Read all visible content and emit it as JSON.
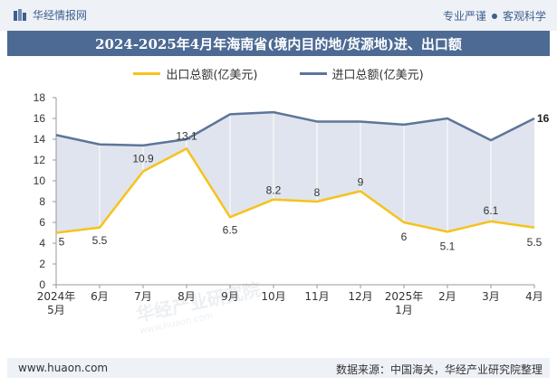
{
  "header": {
    "brand": "华经情报网",
    "slogan_left": "专业严谨",
    "slogan_right": "客观科学"
  },
  "title": "2024-2025年4月年海南省(境内目的地/货源地)进、出口额",
  "legend": [
    {
      "label": "出口总额(亿美元)",
      "color": "#f7c21b"
    },
    {
      "label": "进口总额(亿美元)",
      "color": "#5d7599"
    }
  ],
  "watermark": {
    "text": "华经产业研究院",
    "url": "www.huaon.com"
  },
  "footer": {
    "website": "www.huaon.com",
    "source": "数据来源：中国海关，华经产业研究院整理"
  },
  "chart_data": {
    "type": "line",
    "categories": [
      "2024年\n5月",
      "6月",
      "7月",
      "8月",
      "9月",
      "10月",
      "11月",
      "12月",
      "2025年\n1月",
      "2月",
      "3月",
      "4月"
    ],
    "series": [
      {
        "name": "出口总额(亿美元)",
        "color": "#f7c21b",
        "values": [
          5,
          5.5,
          10.9,
          13.1,
          6.5,
          8.2,
          8,
          9,
          6,
          5.1,
          6.1,
          5.5
        ],
        "labels": [
          "5",
          "5.5",
          "10.9",
          "13.1",
          "6.5",
          "8.2",
          "8",
          "9",
          "6",
          "5.1",
          "6.1",
          "5.5"
        ]
      },
      {
        "name": "进口总额(亿美元)",
        "color": "#5d7599",
        "values": [
          14.4,
          13.5,
          13.4,
          14.0,
          16.4,
          16.6,
          15.7,
          15.7,
          15.4,
          16.0,
          13.9,
          16
        ],
        "labels": [
          "",
          "",
          "",
          "",
          "",
          "",
          "",
          "",
          "",
          "",
          "",
          "16"
        ]
      }
    ],
    "yticks": [
      "0",
      "2",
      "4",
      "6",
      "8",
      "10",
      "12",
      "14",
      "16",
      "18"
    ],
    "ylim": [
      0,
      18
    ],
    "area_fill": "#dfe4ee",
    "grid": true
  }
}
